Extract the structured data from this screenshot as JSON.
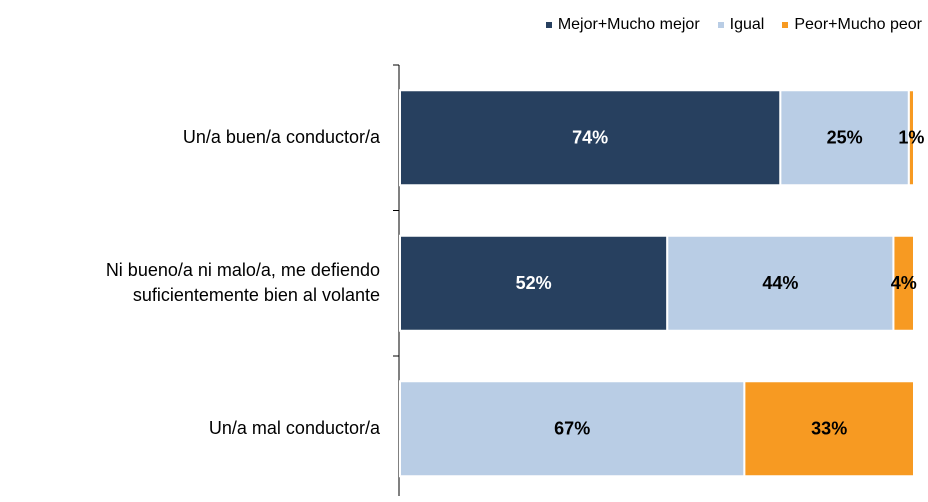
{
  "chart_data": {
    "type": "stacked-barh",
    "categories": [
      "Un/a buen/a conductor/a",
      "Ni bueno/a ni malo/a, me defiendo suficientemente bien al volante",
      "Un/a mal conductor/a"
    ],
    "series": [
      {
        "name": "Mejor+Mucho mejor",
        "color": "#27405f",
        "values": [
          74,
          52,
          0
        ],
        "value_labels": [
          "74%",
          "52%",
          null
        ]
      },
      {
        "name": "Igual",
        "color": "#b9cde5",
        "values": [
          25,
          44,
          67
        ],
        "value_labels": [
          "25%",
          "44%",
          "67%"
        ]
      },
      {
        "name": "Peor+Mucho peor",
        "color": "#f79a22",
        "values": [
          1,
          4,
          33
        ],
        "value_labels": [
          "1%",
          "4%",
          "33%"
        ]
      }
    ],
    "legend": "top-right"
  }
}
